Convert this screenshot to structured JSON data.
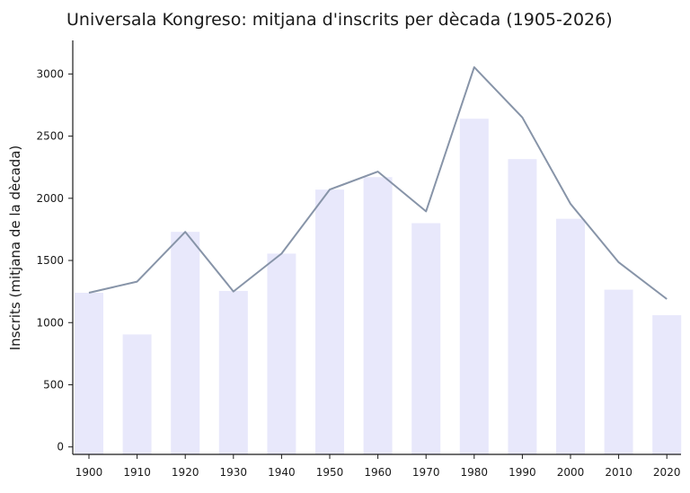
{
  "chart_data": {
    "type": "bar",
    "title": "Universala Kongreso: mitjana d'inscrits per dècada (1905-2026)",
    "xlabel": "",
    "ylabel": "Inscrits (mitjana de la dècada)",
    "categories": [
      "1900",
      "1910",
      "1920",
      "1930",
      "1940",
      "1950",
      "1960",
      "1970",
      "1980",
      "1990",
      "2000",
      "2010",
      "2020"
    ],
    "series": [
      {
        "type": "bar",
        "values": [
          1240,
          905,
          1730,
          1255,
          1555,
          2070,
          2170,
          1800,
          2640,
          2315,
          1835,
          1265,
          1060
        ],
        "color": "#e8e8fb"
      },
      {
        "type": "line",
        "values": [
          1240,
          1330,
          1730,
          1250,
          1555,
          2070,
          2215,
          1895,
          3055,
          2650,
          1955,
          1485,
          1190
        ],
        "color": "#8794a8"
      }
    ],
    "yticks": [
      0,
      500,
      1000,
      1500,
      2000,
      2500,
      3000
    ],
    "ylim": [
      -60,
      3270
    ],
    "grid": false,
    "legend": "none"
  }
}
